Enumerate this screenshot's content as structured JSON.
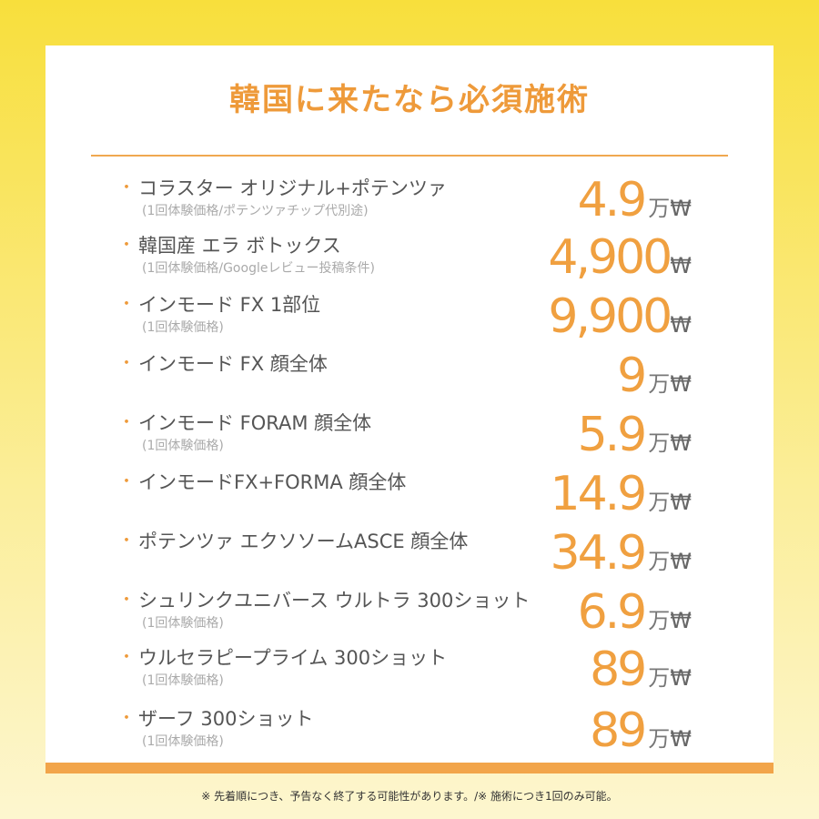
{
  "header": {
    "title": "韓国に来たなら必須施術"
  },
  "items": [
    {
      "name": "コラスター オリジナル+ポテンツァ",
      "note": "(1回体験価格/ポテンツァチップ代別途)",
      "price": "4.9",
      "unit": "万",
      "currency": "₩"
    },
    {
      "name": "韓国産 エラ ボトックス",
      "note": "(1回体験価格/Googleレビュー投稿条件)",
      "price": "4,900",
      "currency": "₩"
    },
    {
      "name": "インモード FX 1部位",
      "note": "(1回体験価格)",
      "price": "9,900",
      "currency": "₩"
    },
    {
      "name": "インモード FX 顔全体",
      "price": "9",
      "unit": "万",
      "currency": "₩"
    },
    {
      "name": "インモード FORAM 顔全体",
      "note": "(1回体験価格)",
      "price": "5.9",
      "unit": "万",
      "currency": "₩"
    },
    {
      "name": "インモードFX+FORMA 顔全体",
      "price": "14.9",
      "unit": "万",
      "currency": "₩"
    },
    {
      "name": "ポテンツァ エクソソームASCE 顔全体",
      "price": "34.9",
      "unit": "万",
      "currency": "₩"
    },
    {
      "name": "シュリンクユニバース ウルトラ 300ショット",
      "note": "(1回体験価格)",
      "price": "6.9",
      "unit": "万",
      "currency": "₩"
    },
    {
      "name": "ウルセラピープライム 300ショット",
      "note": "(1回体験価格)",
      "price": "89",
      "unit": "万",
      "currency": "₩"
    },
    {
      "name": "ザーフ 300ショット",
      "note": "(1回体験価格)",
      "price": "89",
      "unit": "万",
      "currency": "₩"
    }
  ],
  "footer": {
    "text": "※ 先着順につき、予告なく終了する可能性があります。/※ 施術につき1回のみ可能。"
  }
}
